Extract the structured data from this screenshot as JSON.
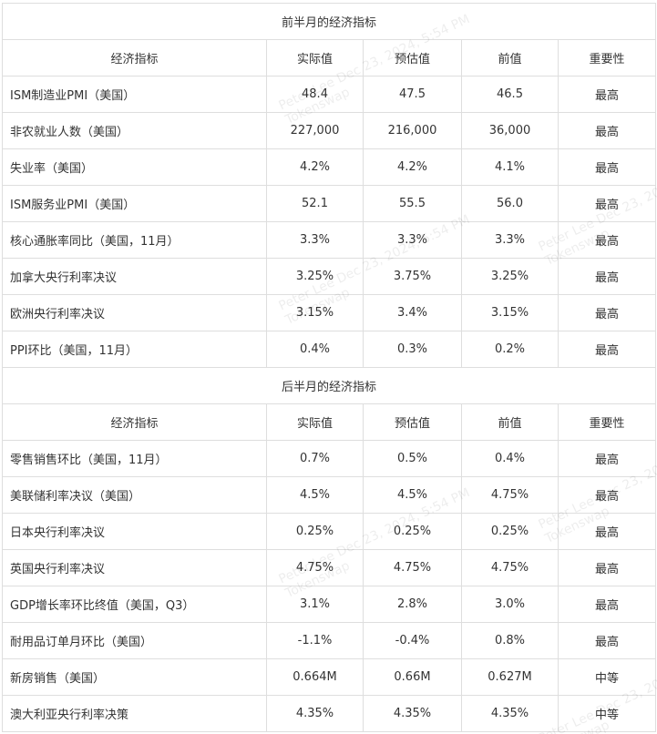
{
  "headers": [
    "经济指标",
    "实际值",
    "预估值",
    "前值",
    "重要性"
  ],
  "sections": [
    {
      "title": "前半月的经济指标",
      "rows": [
        [
          "ISM制造业PMI（美国）",
          "48.4",
          "47.5",
          "46.5",
          "最高"
        ],
        [
          "非农就业人数（美国）",
          "227,000",
          "216,000",
          "36,000",
          "最高"
        ],
        [
          "失业率（美国）",
          "4.2%",
          "4.2%",
          "4.1%",
          "最高"
        ],
        [
          "ISM服务业PMI（美国）",
          "52.1",
          "55.5",
          "56.0",
          "最高"
        ],
        [
          "核心通胀率同比（美国，11月）",
          "3.3%",
          "3.3%",
          "3.3%",
          "最高"
        ],
        [
          "加拿大央行利率决议",
          "3.25%",
          "3.75%",
          "3.25%",
          "最高"
        ],
        [
          "欧洲央行利率决议",
          "3.15%",
          "3.4%",
          "3.15%",
          "最高"
        ],
        [
          "PPI环比（美国，11月）",
          "0.4%",
          "0.3%",
          "0.2%",
          "最高"
        ]
      ]
    },
    {
      "title": "后半月的经济指标",
      "rows": [
        [
          "零售销售环比（美国，11月）",
          "0.7%",
          "0.5%",
          "0.4%",
          "最高"
        ],
        [
          "美联储利率决议（美国）",
          "4.5%",
          "4.5%",
          "4.75%",
          "最高"
        ],
        [
          "日本央行利率决议",
          "0.25%",
          "0.25%",
          "0.25%",
          "最高"
        ],
        [
          "英国央行利率决议",
          "4.75%",
          "4.75%",
          "4.75%",
          "最高"
        ],
        [
          "GDP增长率环比终值（美国，Q3）",
          "3.1%",
          "2.8%",
          "3.0%",
          "最高"
        ],
        [
          "耐用品订单月环比（美国）",
          "-1.1%",
          "-0.4%",
          "0.8%",
          "最高"
        ],
        [
          "新房销售（美国）",
          "0.664M",
          "0.66M",
          "0.627M",
          "中等"
        ],
        [
          "澳大利亚央行利率决策",
          "4.35%",
          "4.35%",
          "4.35%",
          "中等"
        ]
      ]
    }
  ],
  "watermark": {
    "line1": "Peter Lee Dec 23, 2024, 5:54 PM",
    "line2": "Tokenswap"
  }
}
